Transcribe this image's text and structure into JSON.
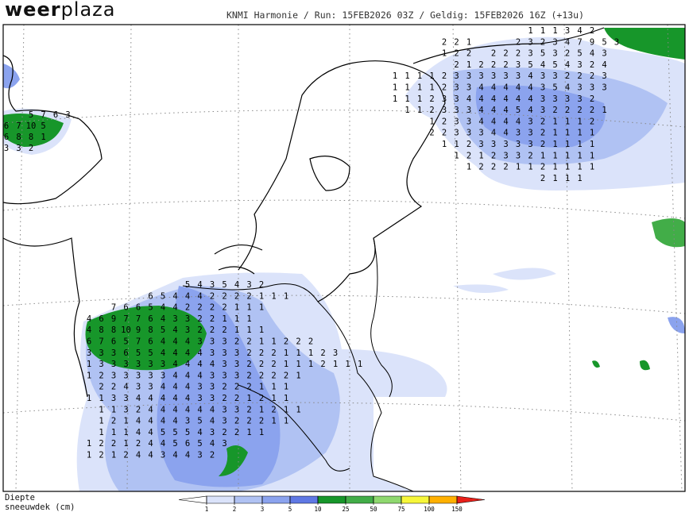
{
  "header": {
    "brand_bold": "weer",
    "brand_light": "plaza",
    "run_info": "KNMI Harmonie / Run: 15FEB2026 03Z / Geldig: 15FEB2026 16Z (+13u)"
  },
  "legend": {
    "title_line1": "Diepte",
    "title_line2": "sneeuwdek (cm)",
    "ticks": [
      1,
      2,
      3,
      5,
      10,
      25,
      50,
      75,
      100,
      150
    ],
    "colors": [
      "#ffffff",
      "#dbe3fa",
      "#b0c2f3",
      "#8ba3ee",
      "#5f78e4",
      "#17962a",
      "#42ad48",
      "#8fd86f",
      "#f6f63a",
      "#ffb000",
      "#e8201a"
    ]
  },
  "map": {
    "blocks": [
      {
        "rows": [
          [
            null,
            null,
            null,
            null,
            null,
            null,
            null,
            null,
            5,
            4,
            3,
            5,
            4,
            3,
            2
          ],
          [
            null,
            null,
            null,
            null,
            null,
            6,
            5,
            4,
            4,
            4,
            2,
            2,
            2,
            2,
            1,
            1,
            1
          ],
          [
            null,
            null,
            7,
            6,
            6,
            5,
            4,
            4,
            2,
            2,
            2,
            2,
            1,
            1,
            1
          ],
          [
            4,
            6,
            9,
            7,
            7,
            6,
            4,
            3,
            3,
            2,
            2,
            1,
            1,
            1
          ],
          [
            4,
            8,
            8,
            10,
            9,
            8,
            5,
            4,
            3,
            2,
            2,
            2,
            1,
            1,
            1
          ],
          [
            6,
            7,
            6,
            5,
            7,
            6,
            4,
            4,
            4,
            3,
            3,
            3,
            2,
            2,
            1,
            1,
            2,
            2,
            2
          ],
          [
            3,
            3,
            3,
            6,
            5,
            5,
            4,
            4,
            4,
            4,
            3,
            3,
            3,
            2,
            2,
            2,
            1,
            1,
            1,
            2,
            3
          ],
          [
            1,
            3,
            3,
            3,
            3,
            3,
            3,
            4,
            4,
            4,
            4,
            3,
            3,
            2,
            2,
            2,
            1,
            1,
            1,
            2,
            1,
            1,
            1
          ],
          [
            1,
            2,
            3,
            3,
            3,
            3,
            3,
            4,
            4,
            4,
            3,
            3,
            3,
            2,
            2,
            2,
            2,
            1
          ],
          [
            null,
            2,
            2,
            4,
            3,
            3,
            4,
            4,
            4,
            3,
            3,
            2,
            2,
            2,
            1,
            1,
            1
          ],
          [
            1,
            1,
            3,
            3,
            4,
            4,
            4,
            4,
            4,
            3,
            3,
            2,
            2,
            1,
            2,
            1,
            1
          ],
          [
            null,
            1,
            1,
            3,
            2,
            4,
            4,
            4,
            4,
            4,
            4,
            3,
            3,
            2,
            1,
            2,
            1,
            1
          ],
          [
            null,
            1,
            2,
            1,
            4,
            4,
            4,
            4,
            3,
            5,
            4,
            3,
            2,
            2,
            2,
            1,
            1
          ],
          [
            null,
            1,
            1,
            1,
            4,
            4,
            5,
            5,
            5,
            4,
            3,
            2,
            2,
            1,
            1
          ],
          [
            1,
            2,
            2,
            1,
            2,
            4,
            4,
            5,
            6,
            5,
            4,
            3
          ],
          [
            1,
            2,
            1,
            2,
            4,
            4,
            3,
            4,
            4,
            3,
            2
          ]
        ]
      },
      {
        "rows": [
          [
            null,
            null,
            null,
            null,
            null,
            null,
            null,
            null,
            null,
            null,
            null,
            1,
            1,
            1,
            3,
            4,
            2
          ],
          [
            null,
            null,
            null,
            null,
            2,
            2,
            1,
            null,
            null,
            null,
            2,
            3,
            2,
            3,
            4,
            7,
            9,
            5,
            3
          ],
          [
            null,
            null,
            null,
            null,
            1,
            2,
            2,
            null,
            2,
            2,
            2,
            3,
            5,
            3,
            2,
            5,
            4,
            3
          ],
          [
            null,
            null,
            null,
            null,
            null,
            2,
            1,
            2,
            2,
            2,
            3,
            5,
            4,
            5,
            4,
            3,
            2,
            4
          ],
          [
            1,
            1,
            1,
            1,
            2,
            3,
            3,
            3,
            3,
            3,
            3,
            4,
            3,
            3,
            2,
            2,
            2,
            3
          ],
          [
            1,
            1,
            1,
            1,
            2,
            3,
            3,
            4,
            4,
            4,
            4,
            4,
            3,
            5,
            4,
            3,
            3,
            3
          ],
          [
            1,
            1,
            1,
            2,
            3,
            3,
            4,
            4,
            4,
            4,
            4,
            4,
            3,
            3,
            3,
            3,
            2
          ],
          [
            null,
            1,
            1,
            2,
            3,
            3,
            3,
            4,
            4,
            4,
            5,
            4,
            3,
            2,
            2,
            2,
            2,
            1
          ],
          [
            null,
            null,
            null,
            1,
            2,
            3,
            3,
            4,
            4,
            4,
            4,
            3,
            2,
            1,
            1,
            1,
            2
          ],
          [
            null,
            null,
            null,
            2,
            2,
            3,
            3,
            3,
            4,
            4,
            3,
            3,
            2,
            1,
            1,
            1,
            1
          ],
          [
            null,
            null,
            null,
            null,
            1,
            1,
            2,
            3,
            3,
            3,
            3,
            3,
            2,
            1,
            1,
            1,
            1
          ],
          [
            null,
            null,
            null,
            null,
            null,
            1,
            2,
            1,
            2,
            3,
            3,
            2,
            1,
            1,
            1,
            1,
            1
          ],
          [
            null,
            null,
            null,
            null,
            null,
            null,
            1,
            2,
            2,
            2,
            1,
            1,
            2,
            1,
            1,
            1,
            1
          ],
          [
            null,
            null,
            null,
            null,
            null,
            null,
            null,
            null,
            null,
            null,
            null,
            null,
            2,
            1,
            1,
            1
          ]
        ]
      },
      {
        "rows": [
          [
            null,
            null,
            5,
            7,
            6,
            3
          ],
          [
            6,
            7,
            10,
            5
          ],
          [
            6,
            8,
            8,
            1
          ],
          [
            3,
            3,
            2
          ]
        ]
      }
    ]
  }
}
